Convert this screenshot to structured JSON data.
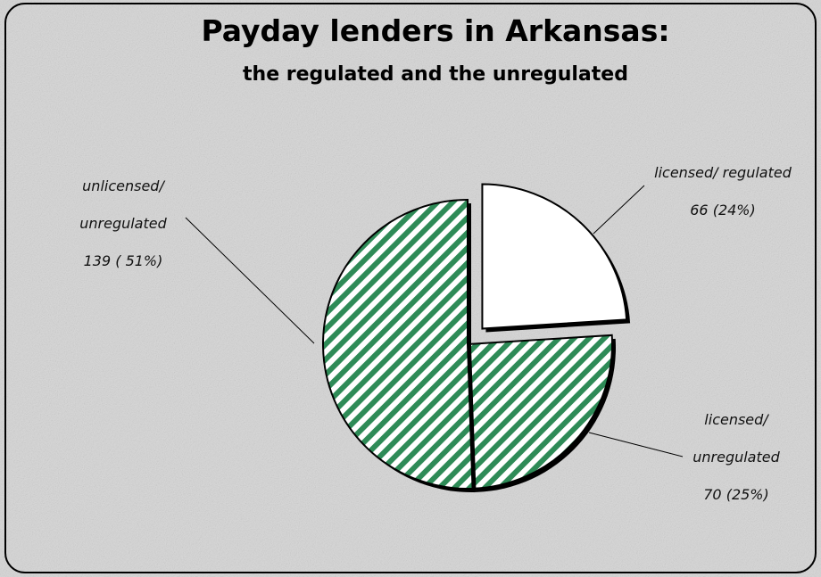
{
  "chart_data": {
    "type": "pie",
    "title": "Payday lenders in Arkansas:",
    "subtitle": "the regulated and the unregulated",
    "categories": [
      "licensed/ regulated",
      "licensed/ unregulated",
      "unlicensed/ unregulated"
    ],
    "values": [
      66,
      70,
      139
    ],
    "value_labels": [
      "66 (24%)",
      "70 (25%)",
      "139 ( 51%)"
    ],
    "colors": [
      "#ffffff",
      "#2e8b57",
      "#2e8b57"
    ],
    "hatched": [
      false,
      true,
      true
    ],
    "exploded": [
      true,
      false,
      false
    ]
  }
}
